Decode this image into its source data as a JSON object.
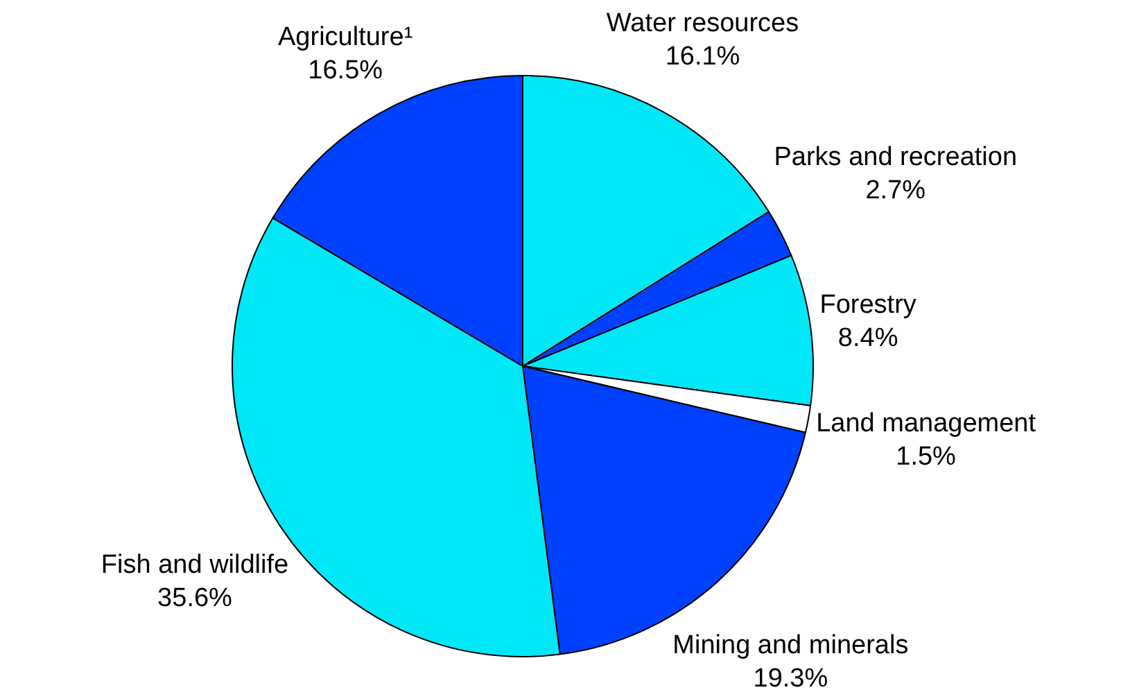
{
  "chart_data": {
    "type": "pie",
    "categories": [
      "Water resources",
      "Parks and recreation",
      "Forestry",
      "Land management",
      "Mining and minerals",
      "Fish and wildlife",
      "Agriculture¹"
    ],
    "values": [
      16.1,
      2.7,
      8.4,
      1.5,
      19.3,
      35.6,
      16.5
    ],
    "colors": [
      "#00e8f8",
      "#0040ff",
      "#00e8f8",
      "#ffffff",
      "#0040ff",
      "#00e8f8",
      "#0040ff"
    ],
    "value_labels": [
      "16.1%",
      "2.7%",
      "8.4%",
      "1.5%",
      "19.3%",
      "35.6%",
      "16.5%"
    ],
    "legend": false
  }
}
